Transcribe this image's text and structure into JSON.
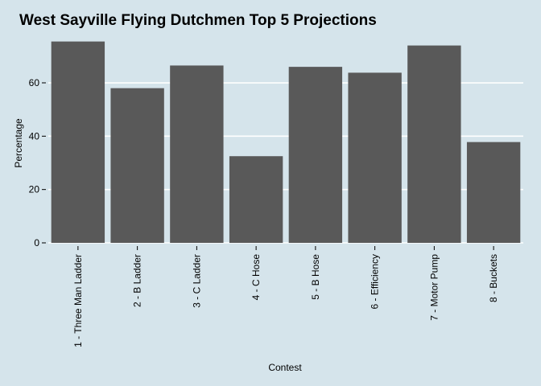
{
  "chart_data": {
    "type": "bar",
    "title": "West Sayville Flying Dutchmen Top 5 Projections",
    "xlabel": "Contest",
    "ylabel": "Percentage",
    "categories": [
      "1 - Three Man Ladder",
      "2 - B Ladder",
      "3 - C Ladder",
      "4 - C Hose",
      "5 - B Hose",
      "6 - Efficiency",
      "7 - Motor Pump",
      "8 - Buckets"
    ],
    "values": [
      75.5,
      58,
      66.5,
      32.5,
      66,
      63.8,
      74,
      37.8
    ],
    "yticks": [
      0,
      20,
      40,
      60
    ],
    "ylim": [
      0,
      79
    ],
    "grid": "horizontal",
    "colors": {
      "background": "#d5e4eb",
      "bar": "#595959",
      "grid": "#ffffff"
    }
  }
}
